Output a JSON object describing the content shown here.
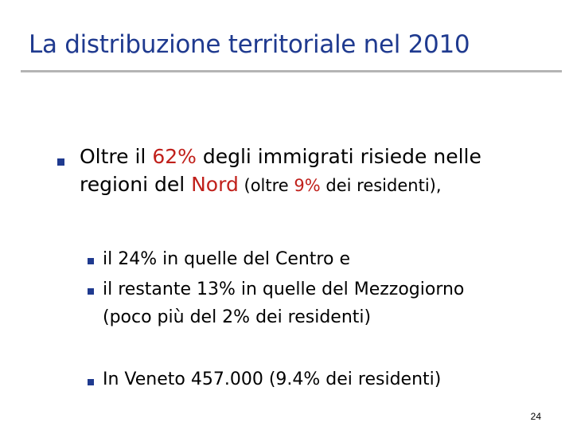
{
  "slide": {
    "title": "La distribuzione territoriale nel 2010",
    "page_number": "24",
    "accent_color": "#1f3a8f",
    "highlight_color": "#c0201b",
    "bullet_icon": "square-bullet-icon",
    "main_bullet": {
      "line1_a": "Oltre il ",
      "line1_pct": "62%",
      "line1_b": " degli immigrati risiede nelle",
      "line2_a": "regioni del ",
      "line2_nord": "Nord",
      "line2_b": " (oltre ",
      "line2_pct": "9%",
      "line2_c": " dei residenti),"
    },
    "sub_bullets": [
      {
        "text": "il 24% in quelle del Centro e"
      },
      {
        "text": "il restante 13% in quelle del Mezzogiorno",
        "continuation": "(poco più del 2% dei residenti)"
      },
      {
        "text": "In Veneto 457.000 (9.4% dei residenti)"
      }
    ]
  }
}
